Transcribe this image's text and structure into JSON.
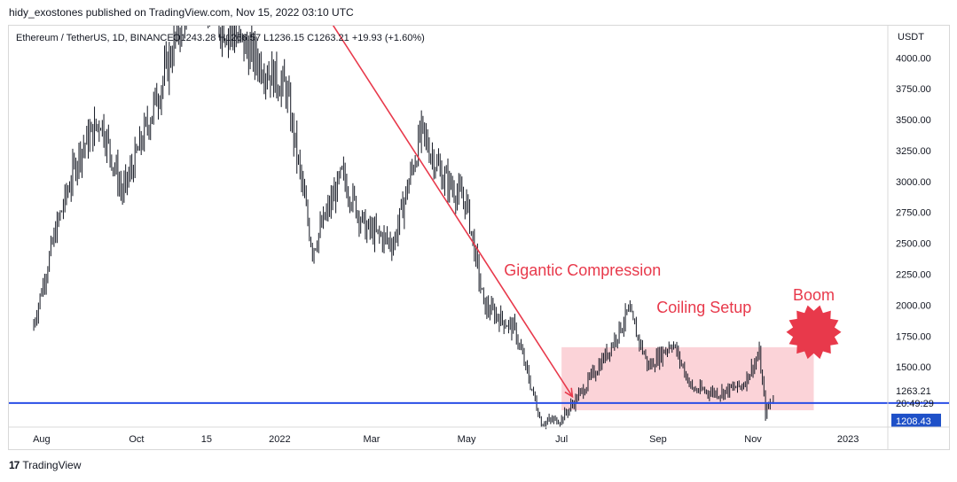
{
  "header": {
    "publisher_line": "hidy_exostones published on TradingView.com, Nov 15, 2022 03:10 UTC"
  },
  "legend": {
    "symbol": "Ethereum / TetherUS, 1D, BINANCE",
    "ohlc": "O1243.28 H1266.57 L1236.15 C1263.21 +19.93 (+1.60%)"
  },
  "footer": {
    "logo_glyph": "17",
    "brand": "TradingView"
  },
  "colors": {
    "line": "#e8394b",
    "annotation": "#e8394b",
    "support": "#2a4ee6",
    "box": "#fbd3d8",
    "candle": "#131722",
    "price_tag": "#1e50c8"
  },
  "chart_data": {
    "type": "line",
    "series_name": "",
    "x_tick_labels": [
      "Aug",
      "Oct",
      "15",
      "2022",
      "Mar",
      "May",
      "Jul",
      "Sep",
      "Nov",
      "2023"
    ],
    "y_axis": {
      "unit": "USDT",
      "ylim": [
        1050,
        4260
      ],
      "ticks": [
        "4000.00",
        "3750.00",
        "3500.00",
        "3250.00",
        "3000.00",
        "2750.00",
        "2500.00",
        "2250.00",
        "2000.00",
        "1750.00",
        "1500.00"
      ]
    },
    "dates": [
      "2021-07-26",
      "2021-08-10",
      "2021-08-25",
      "2021-09-08",
      "2021-09-22",
      "2021-10-05",
      "2021-10-20",
      "2021-11-08",
      "2021-11-22",
      "2021-12-05",
      "2021-12-20",
      "2022-01-05",
      "2022-01-22",
      "2022-02-10",
      "2022-02-25",
      "2022-03-15",
      "2022-04-02",
      "2022-04-15",
      "2022-05-01",
      "2022-05-12",
      "2022-06-01",
      "2022-06-18",
      "2022-07-01",
      "2022-07-15",
      "2022-08-01",
      "2022-08-13",
      "2022-08-26",
      "2022-09-10",
      "2022-09-23",
      "2022-10-10",
      "2022-10-25",
      "2022-11-05",
      "2022-11-09",
      "2022-11-14"
    ],
    "close": [
      1800,
      2600,
      3230,
      3500,
      2900,
      3350,
      3900,
      4700,
      4300,
      4150,
      3950,
      3750,
      2450,
      3050,
      2620,
      2500,
      3400,
      3050,
      2820,
      2000,
      1800,
      1050,
      1080,
      1320,
      1650,
      1950,
      1500,
      1700,
      1320,
      1290,
      1350,
      1600,
      1130,
      1263.21
    ],
    "current_price": {
      "label": "1263.21",
      "value": 1263.21,
      "countdown": "20:49:29"
    },
    "support_level": {
      "label": "1208.43",
      "value": 1208.43
    },
    "trend_line": {
      "start": [
        "2022-01-18",
        4600
      ],
      "end": [
        "2022-07-08",
        1260
      ]
    },
    "range_box": {
      "x": [
        "2022-07-01",
        "2022-12-10"
      ],
      "y": [
        1150,
        1660
      ]
    },
    "annotations": [
      {
        "text": "Gigantic Compression",
        "at": [
          "2022-05-25",
          2240
        ]
      },
      {
        "text": "Coiling Setup",
        "at": [
          "2022-08-31",
          1940
        ]
      },
      {
        "text": "Boom",
        "at": [
          "2022-12-10",
          2040
        ]
      }
    ]
  }
}
